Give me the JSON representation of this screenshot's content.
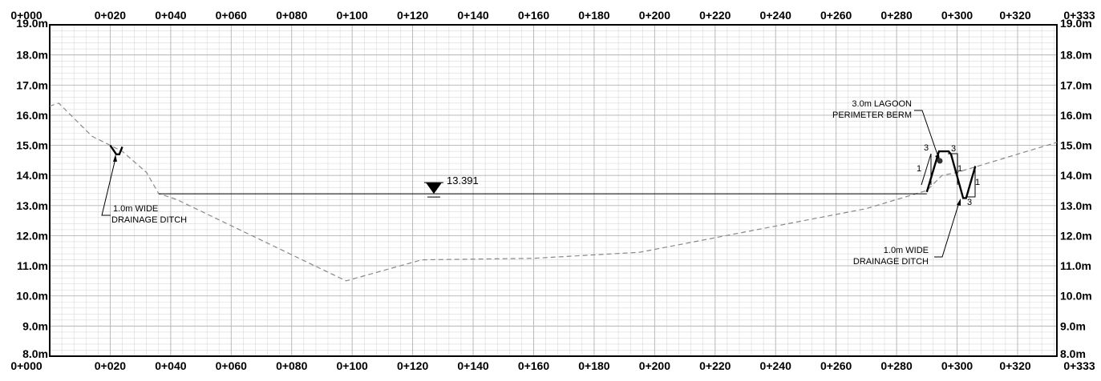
{
  "chart_data": {
    "type": "line",
    "title": "",
    "xlabel": "",
    "ylabel": "",
    "xlim": [
      0,
      333
    ],
    "ylim": [
      8,
      19
    ],
    "x_ticks": [
      0,
      20,
      40,
      60,
      80,
      100,
      120,
      140,
      160,
      180,
      200,
      220,
      240,
      260,
      280,
      300,
      320,
      333
    ],
    "x_tick_labels": [
      "0+000",
      "0+020",
      "0+040",
      "0+060",
      "0+080",
      "0+100",
      "0+120",
      "0+140",
      "0+160",
      "0+180",
      "0+200",
      "0+220",
      "0+240",
      "0+260",
      "0+280",
      "0+300",
      "0+320",
      "0+333"
    ],
    "y_ticks": [
      8,
      9,
      10,
      11,
      12,
      13,
      14,
      15,
      16,
      17,
      18,
      19
    ],
    "y_tick_labels": [
      "8.0m",
      "9.0m",
      "10.0m",
      "11.0m",
      "12.0m",
      "13.0m",
      "14.0m",
      "15.0m",
      "16.0m",
      "17.0m",
      "18.0m",
      "19.0m"
    ],
    "grid": true,
    "minor_grid_x_step": 4,
    "minor_grid_y_step": 0.2,
    "series": [
      {
        "style": "dashed",
        "color": "#888888",
        "x": [
          0,
          3,
          14,
          20,
          24,
          32,
          36,
          42,
          98,
          123,
          160,
          195,
          270,
          290,
          295,
          300,
          333
        ],
        "y": [
          16.3,
          16.4,
          15.3,
          15.0,
          14.8,
          14.1,
          13.4,
          13.2,
          10.5,
          11.2,
          11.25,
          11.45,
          12.9,
          13.5,
          14.0,
          14.1,
          15.1
        ]
      },
      {
        "style": "solid-bold",
        "color": "#000000",
        "x": [
          20,
          22,
          23,
          24
        ],
        "y": [
          15.0,
          14.7,
          14.7,
          14.95
        ]
      },
      {
        "style": "solid-bold",
        "color": "#000000",
        "x": [
          290,
          294,
          297.2,
          298,
          302,
          303,
          306
        ],
        "y": [
          13.45,
          14.8,
          14.8,
          14.7,
          13.25,
          13.25,
          14.3
        ]
      }
    ],
    "water_level": {
      "value": 13.391,
      "label": "13.391",
      "x_start": 36,
      "x_end": 290,
      "marker_x": 127
    },
    "annotations": [
      {
        "id": "ditch-left",
        "lines": [
          "1.0m WIDE",
          "DRAINAGE DITCH"
        ]
      },
      {
        "id": "berm",
        "lines": [
          "3.0m LAGOON",
          "PERIMETER BERM"
        ]
      },
      {
        "id": "ditch-right",
        "lines": [
          "1.0m WIDE",
          "DRAINAGE DITCH"
        ]
      }
    ],
    "slope_marks": [
      "3",
      "1",
      "3",
      "1",
      "1",
      "3"
    ]
  }
}
